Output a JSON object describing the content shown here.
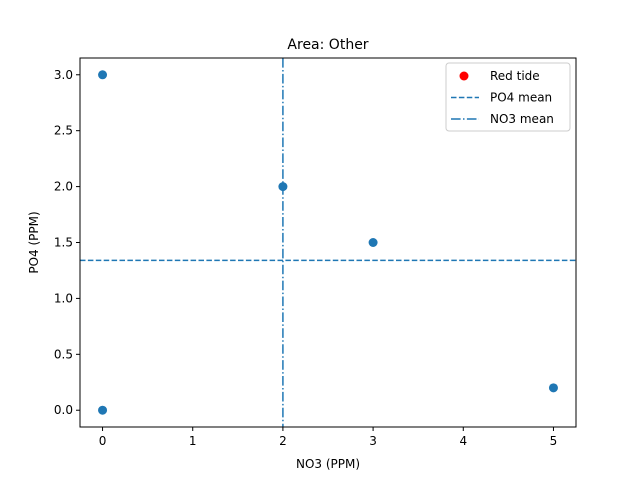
{
  "chart_data": {
    "type": "scatter",
    "title": "Area: Other",
    "xlabel": "NO3 (PPM)",
    "ylabel": "PO4 (PPM)",
    "xlim": [
      -0.25,
      5.25
    ],
    "ylim": [
      -0.15,
      3.15
    ],
    "xticks": [
      "0",
      "1",
      "2",
      "3",
      "4",
      "5"
    ],
    "yticks": [
      "0.0",
      "0.5",
      "1.0",
      "1.5",
      "2.0",
      "2.5",
      "3.0"
    ],
    "grid": false,
    "legend_position": "top-right",
    "series": [
      {
        "name": "Red tide",
        "color": "#ff0000",
        "points": []
      },
      {
        "color": "#1f77b4",
        "points": [
          {
            "x": 0,
            "y": 3.0
          },
          {
            "x": 0,
            "y": 0.0
          },
          {
            "x": 2,
            "y": 2.0
          },
          {
            "x": 3,
            "y": 1.5
          },
          {
            "x": 5,
            "y": 0.2
          }
        ]
      }
    ],
    "reference_lines": [
      {
        "name": "PO4 mean",
        "orientation": "horizontal",
        "value": 1.34,
        "style": "dashed",
        "color": "#1f77b4"
      },
      {
        "name": "NO3 mean",
        "orientation": "vertical",
        "value": 2.0,
        "style": "dashdot",
        "color": "#1f77b4"
      }
    ]
  }
}
